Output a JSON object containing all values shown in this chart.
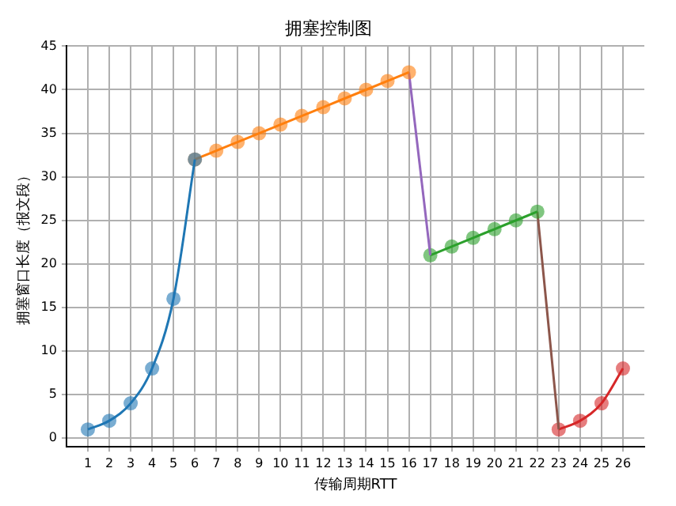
{
  "chart_data": {
    "type": "line",
    "title": "拥塞控制图",
    "xlabel": "传输周期RTT",
    "ylabel": "拥塞窗口长度（报文段）",
    "xlim": [
      0,
      27
    ],
    "xticks": [
      1,
      2,
      3,
      4,
      5,
      6,
      7,
      8,
      9,
      10,
      11,
      12,
      13,
      14,
      15,
      16,
      17,
      18,
      19,
      20,
      21,
      22,
      23,
      24,
      25,
      26
    ],
    "ylim": [
      -1,
      45
    ],
    "yticks": [
      0,
      5,
      10,
      15,
      20,
      25,
      30,
      35,
      40,
      45
    ],
    "grid": true,
    "legend": false,
    "series": [
      {
        "color": "#1f77b4",
        "marker": "circle",
        "x": [
          1,
          2,
          3,
          4,
          5,
          6
        ],
        "values": [
          1,
          2,
          4,
          8,
          16,
          32
        ]
      },
      {
        "color": "#ff7f0e",
        "marker": "circle",
        "x": [
          6,
          7,
          8,
          9,
          10,
          11,
          12,
          13,
          14,
          15,
          16
        ],
        "values": [
          32,
          33,
          34,
          35,
          36,
          37,
          38,
          39,
          40,
          41,
          42
        ]
      },
      {
        "color": "#9467bd",
        "marker": "none",
        "x": [
          16,
          17
        ],
        "values": [
          42,
          21
        ]
      },
      {
        "color": "#2ca02c",
        "marker": "circle",
        "x": [
          17,
          18,
          19,
          20,
          21,
          22
        ],
        "values": [
          21,
          22,
          23,
          24,
          25,
          26
        ]
      },
      {
        "color": "#8c564b",
        "marker": "none",
        "x": [
          22,
          23
        ],
        "values": [
          26,
          1
        ]
      },
      {
        "color": "#d62728",
        "marker": "circle",
        "x": [
          23,
          24,
          25,
          26
        ],
        "values": [
          1,
          2,
          4,
          8
        ]
      }
    ]
  }
}
